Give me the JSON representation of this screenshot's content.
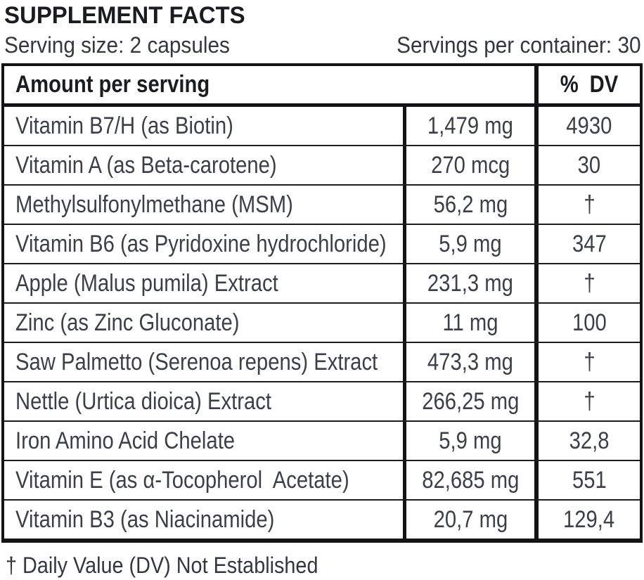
{
  "title": "SUPPLEMENT FACTS",
  "serving_info": {
    "serving_size": "Serving size: 2 capsules",
    "servings_per_container": "Servings per container: 30"
  },
  "table": {
    "header": {
      "amount_label": "Amount per serving",
      "dv_label": "% DV"
    },
    "rows": [
      {
        "name": "Vitamin B7/H (as Biotin)",
        "amount": "1,479 mg",
        "dv": "4930"
      },
      {
        "name": "Vitamin A (as Beta-carotene)",
        "amount": "270 mcg",
        "dv": "30"
      },
      {
        "name": "Methylsulfonylmethane (MSM)",
        "amount": "56,2 mg",
        "dv": "†"
      },
      {
        "name": "Vitamin B6 (as Pyridoxine hydrochloride)",
        "amount": "5,9 mg",
        "dv": "347"
      },
      {
        "name": "Apple (Malus pumila) Extract",
        "amount": "231,3 mg",
        "dv": "†"
      },
      {
        "name": "Zinc (as Zinc Gluconate)",
        "amount": "11 mg",
        "dv": "100"
      },
      {
        "name": "Saw Palmetto (Serenoa repens) Extract",
        "amount": "473,3 mg",
        "dv": "†"
      },
      {
        "name": "Nettle (Urtica dioica) Extract",
        "amount": "266,25 mg",
        "dv": "†"
      },
      {
        "name": "Iron Amino Acid Chelate",
        "amount": "5,9 mg",
        "dv": "32,8"
      },
      {
        "name": "Vitamin E (as α-Tocopherol  Acetate)",
        "amount": "82,685 mg",
        "dv": "551"
      },
      {
        "name": "Vitamin B3 (as Niacinamide)",
        "amount": "20,7 mg",
        "dv": "129,4"
      }
    ]
  },
  "footnote": "† Daily Value (DV) Not Established",
  "colors": {
    "background": "#ffffff",
    "text": "#3c3f47",
    "heading": "#1b1c20",
    "border": "#141416"
  }
}
